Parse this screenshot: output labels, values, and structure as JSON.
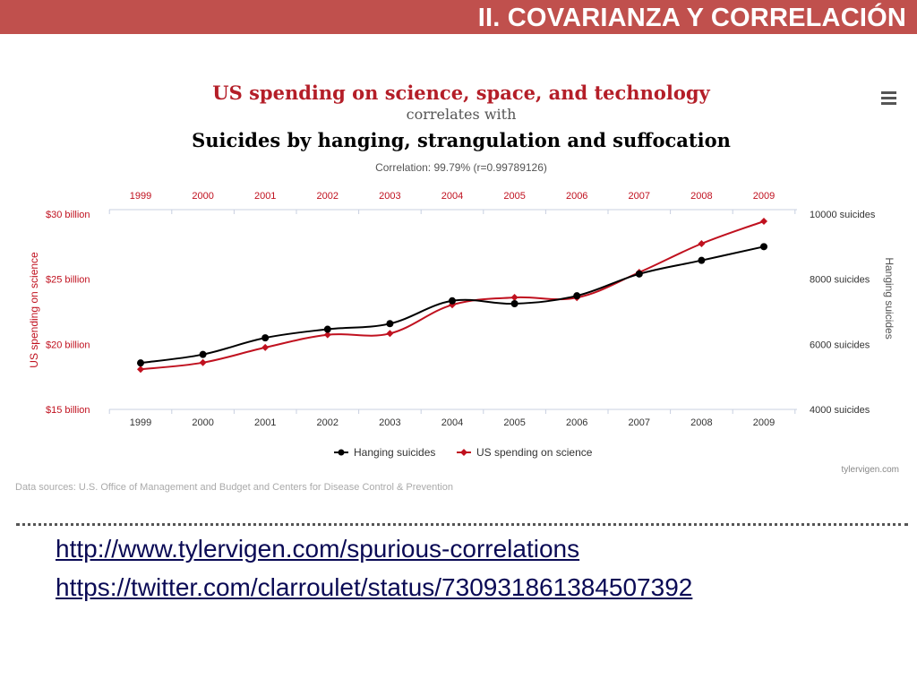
{
  "slide": {
    "title": "II. COVARIANZA Y CORRELACIÓN",
    "links": [
      "http://www.tylervigen.com/spurious-correlations",
      "https://twitter.com/clarroulet/status/730931861384507392"
    ]
  },
  "colors": {
    "title_bar": "#c0504d",
    "spending_series": "#c0111f",
    "suicides_series": "#000000",
    "link": "#0a0a55"
  },
  "chart_data": {
    "type": "line",
    "title": "US spending on science, space, and technology",
    "connector": "correlates with",
    "subtitle": "Suicides by hanging, strangulation and suffocation",
    "correlation": "Correlation: 99.79% (r=0.99789126)",
    "x": [
      "1999",
      "2000",
      "2001",
      "2002",
      "2003",
      "2004",
      "2005",
      "2006",
      "2007",
      "2008",
      "2009"
    ],
    "ylabel_left": "US spending on science",
    "ylabel_right": "Hanging suicides",
    "y_left_ticks": [
      "$30 billion",
      "$25 billion",
      "$20 billion",
      "$15 billion"
    ],
    "y_left_range": [
      15,
      30
    ],
    "y_right_ticks": [
      "10000 suicides",
      "8000 suicides",
      "6000 suicides",
      "4000 suicides"
    ],
    "y_right_range": [
      4000,
      10000
    ],
    "series": [
      {
        "name": "Hanging suicides",
        "axis": "right",
        "color": "#000000",
        "marker": "circle",
        "values": [
          5427,
          5688,
          6198,
          6462,
          6635,
          7336,
          7248,
          7491,
          8161,
          8578,
          9000
        ]
      },
      {
        "name": "US spending on science",
        "axis": "left",
        "color": "#c0111f",
        "marker": "diamond",
        "values": [
          18.079,
          18.594,
          19.753,
          20.734,
          20.831,
          23.029,
          23.597,
          23.584,
          25.525,
          27.731,
          29.449
        ]
      }
    ],
    "legend_position": "bottom-center",
    "grid": false,
    "source": "Data sources: U.S. Office of Management and Budget and Centers for Disease Control & Prevention",
    "credit": "tylervigen.com",
    "menu_icon": "hamburger-menu-icon"
  }
}
